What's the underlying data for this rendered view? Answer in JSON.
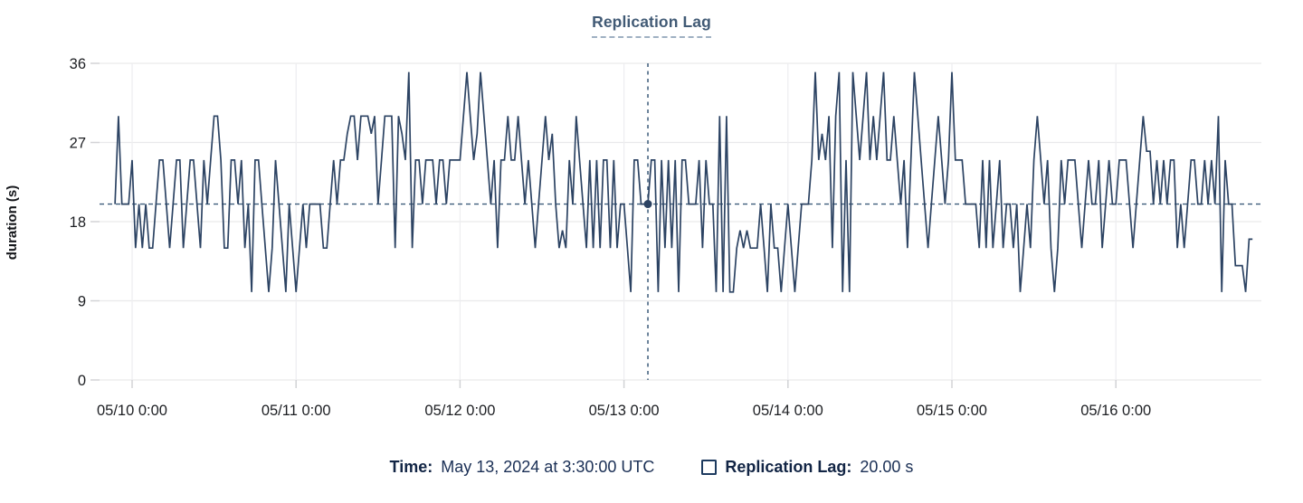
{
  "chart": {
    "title": "Replication Lag",
    "y_axis_title": "duration (s)"
  },
  "tooltip": {
    "time_label": "Time:",
    "time_value": "May 13, 2024 at 3:30:00 UTC",
    "series_label": "Replication Lag:",
    "series_value": "20.00 s",
    "swatch_icon": "square-outline-icon"
  },
  "colors": {
    "line": "#2c4363",
    "crosshair": "#3d5c7a",
    "title": "#415a75",
    "title_underline": "#9fb0c2",
    "legend_text": "#1a2f55",
    "axis_text": "#1d1f23",
    "grid": "#e9e9eb",
    "grid_vertical": "#ededf0",
    "tick": "#d2d3d6",
    "background": "#ffffff"
  },
  "chart_data": {
    "type": "line",
    "title": "Replication Lag",
    "xlabel": "",
    "ylabel": "duration (s)",
    "ylim": [
      0,
      36
    ],
    "yticks": [
      0,
      9,
      18,
      27,
      36
    ],
    "xticks": [
      {
        "label": "05/10 0:00",
        "hour": 0
      },
      {
        "label": "05/11 0:00",
        "hour": 24
      },
      {
        "label": "05/12 0:00",
        "hour": 48
      },
      {
        "label": "05/13 0:00",
        "hour": 72
      },
      {
        "label": "05/14 0:00",
        "hour": 96
      },
      {
        "label": "05/15 0:00",
        "hour": 120
      },
      {
        "label": "05/16 0:00",
        "hour": 144
      }
    ],
    "x_domain_hours": [
      -4.8,
      165.3
    ],
    "grid": true,
    "legend_position": "bottom",
    "reference_line": {
      "value": 20,
      "style": "dashed"
    },
    "crosshair": {
      "hour": 75.5,
      "value": 20,
      "time_text": "May 13, 2024 at 3:30:00 UTC",
      "value_text": "20.00 s"
    },
    "series": [
      {
        "name": "Replication Lag",
        "unit": "s",
        "start_hour": -2.5,
        "interval_hours": 0.5,
        "values": [
          20,
          30,
          20,
          20,
          20,
          25,
          15,
          20,
          15,
          20,
          15,
          15,
          20,
          25,
          25,
          20,
          15,
          20,
          25,
          25,
          15,
          20,
          25,
          25,
          20,
          15,
          25,
          20,
          25,
          30,
          30,
          25,
          15,
          15,
          25,
          25,
          20,
          25,
          15,
          20,
          10,
          25,
          25,
          20,
          15,
          10,
          15,
          25,
          20,
          15,
          10,
          20,
          15,
          10,
          15,
          20,
          15,
          20,
          20,
          20,
          20,
          15,
          15,
          20,
          25,
          20,
          25,
          25,
          28,
          30,
          30,
          25,
          30,
          30,
          30,
          28,
          30,
          20,
          25,
          30,
          30,
          30,
          15,
          30,
          28,
          25,
          35,
          15,
          25,
          25,
          20,
          25,
          25,
          25,
          20,
          25,
          25,
          20,
          25,
          25,
          25,
          25,
          30,
          35,
          30,
          25,
          28,
          35,
          30,
          25,
          20,
          25,
          15,
          25,
          25,
          30,
          25,
          25,
          30,
          25,
          20,
          25,
          20,
          15,
          20,
          25,
          30,
          25,
          28,
          20,
          15,
          17,
          15,
          25,
          20,
          30,
          25,
          20,
          15,
          25,
          15,
          25,
          15,
          25,
          25,
          15,
          25,
          15,
          20,
          20,
          15,
          10,
          25,
          25,
          20,
          20,
          20,
          25,
          25,
          10,
          25,
          15,
          25,
          15,
          25,
          10,
          25,
          25,
          20,
          20,
          20,
          25,
          15,
          25,
          20,
          20,
          10,
          30,
          10,
          30,
          10,
          10,
          15,
          17,
          15,
          17,
          15,
          15,
          15,
          20,
          15,
          10,
          20,
          15,
          15,
          10,
          15,
          20,
          15,
          10,
          15,
          20,
          20,
          20,
          25,
          35,
          25,
          28,
          25,
          30,
          15,
          30,
          35,
          10,
          25,
          10,
          35,
          30,
          25,
          30,
          35,
          25,
          30,
          25,
          30,
          35,
          25,
          25,
          30,
          25,
          20,
          25,
          15,
          25,
          35,
          30,
          25,
          20,
          15,
          20,
          25,
          30,
          25,
          20,
          25,
          35,
          25,
          25,
          25,
          20,
          20,
          20,
          20,
          15,
          25,
          15,
          25,
          15,
          20,
          25,
          15,
          20,
          20,
          15,
          20,
          10,
          15,
          20,
          15,
          25,
          30,
          25,
          20,
          25,
          15,
          10,
          15,
          25,
          20,
          25,
          25,
          25,
          20,
          15,
          20,
          25,
          20,
          20,
          25,
          15,
          20,
          25,
          20,
          20,
          25,
          25,
          25,
          20,
          15,
          20,
          25,
          30,
          26,
          26,
          20,
          25,
          20,
          25,
          20,
          25,
          25,
          15,
          20,
          15,
          20,
          25,
          25,
          20,
          20,
          25,
          20,
          25,
          20,
          30,
          10,
          25,
          20,
          20,
          13,
          13,
          13,
          10,
          16,
          16
        ]
      }
    ]
  }
}
